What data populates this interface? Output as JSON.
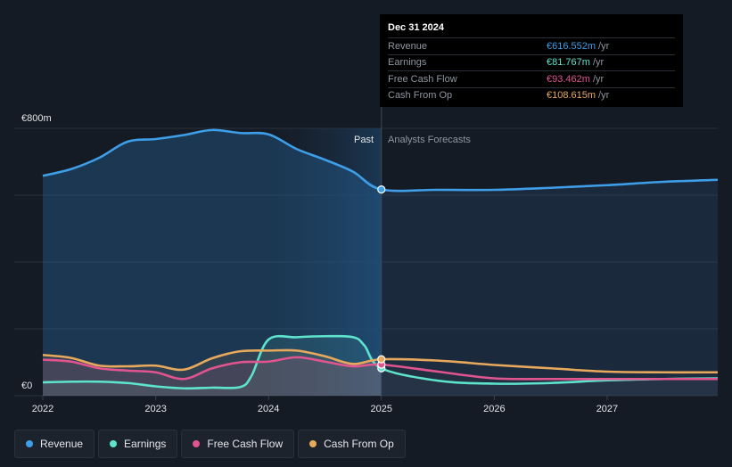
{
  "tooltip": {
    "date": "Dec 31 2024",
    "rows": [
      {
        "label": "Revenue",
        "value": "€616.552m",
        "unit": "/yr",
        "color": "#3e9ee8"
      },
      {
        "label": "Earnings",
        "value": "€81.767m",
        "unit": "/yr",
        "color": "#5ee3cc"
      },
      {
        "label": "Free Cash Flow",
        "value": "€93.462m",
        "unit": "/yr",
        "color": "#e0548f"
      },
      {
        "label": "Cash From Op",
        "value": "€108.615m",
        "unit": "/yr",
        "color": "#e8a95c"
      }
    ]
  },
  "legend": [
    {
      "label": "Revenue",
      "color": "#3e9ee8"
    },
    {
      "label": "Earnings",
      "color": "#5ee3cc"
    },
    {
      "label": "Free Cash Flow",
      "color": "#e0548f"
    },
    {
      "label": "Cash From Op",
      "color": "#e8a95c"
    }
  ],
  "chart_data": {
    "type": "line",
    "title": "",
    "xlabel": "",
    "ylabel": "",
    "ylim": [
      0,
      800
    ],
    "xlim": [
      2022.0,
      2027.98
    ],
    "y_tick_labels": [
      "€800m",
      "€0"
    ],
    "y_ticks": [
      800,
      0
    ],
    "x_ticks": [
      2022,
      2023,
      2024,
      2025,
      2026,
      2027
    ],
    "x_tick_labels": [
      "2022",
      "2023",
      "2024",
      "2025",
      "2026",
      "2027"
    ],
    "divider_x": 2025.0,
    "past_label": "Past",
    "forecast_label": "Analysts Forecasts",
    "highlight_x": 2025.0,
    "series": [
      {
        "name": "Revenue",
        "color": "#3e9ee8",
        "points": [
          [
            2022.0,
            658
          ],
          [
            2022.25,
            678
          ],
          [
            2022.5,
            712
          ],
          [
            2022.75,
            760
          ],
          [
            2023.0,
            768
          ],
          [
            2023.25,
            780
          ],
          [
            2023.5,
            795
          ],
          [
            2023.75,
            786
          ],
          [
            2024.0,
            782
          ],
          [
            2024.25,
            738
          ],
          [
            2024.5,
            706
          ],
          [
            2024.75,
            670
          ],
          [
            2025.0,
            617
          ],
          [
            2025.5,
            616
          ],
          [
            2026.0,
            616
          ],
          [
            2026.5,
            622
          ],
          [
            2027.0,
            630
          ],
          [
            2027.5,
            640
          ],
          [
            2027.98,
            646
          ]
        ]
      },
      {
        "name": "Earnings",
        "color": "#5ee3cc",
        "points": [
          [
            2022.0,
            40
          ],
          [
            2022.25,
            42
          ],
          [
            2022.5,
            42
          ],
          [
            2022.75,
            38
          ],
          [
            2023.0,
            28
          ],
          [
            2023.25,
            22
          ],
          [
            2023.5,
            24
          ],
          [
            2023.75,
            26
          ],
          [
            2023.85,
            60
          ],
          [
            2024.0,
            168
          ],
          [
            2024.25,
            175
          ],
          [
            2024.5,
            178
          ],
          [
            2024.75,
            175
          ],
          [
            2024.85,
            150
          ],
          [
            2025.0,
            82
          ],
          [
            2025.5,
            45
          ],
          [
            2026.0,
            36
          ],
          [
            2026.5,
            38
          ],
          [
            2027.0,
            46
          ],
          [
            2027.5,
            50
          ],
          [
            2027.98,
            52
          ]
        ]
      },
      {
        "name": "Free Cash Flow",
        "color": "#e0548f",
        "points": [
          [
            2022.0,
            108
          ],
          [
            2022.25,
            102
          ],
          [
            2022.5,
            82
          ],
          [
            2022.75,
            75
          ],
          [
            2023.0,
            70
          ],
          [
            2023.25,
            50
          ],
          [
            2023.5,
            82
          ],
          [
            2023.75,
            100
          ],
          [
            2024.0,
            102
          ],
          [
            2024.25,
            115
          ],
          [
            2024.5,
            102
          ],
          [
            2024.75,
            88
          ],
          [
            2025.0,
            93
          ],
          [
            2025.5,
            72
          ],
          [
            2026.0,
            52
          ],
          [
            2026.5,
            50
          ],
          [
            2027.0,
            50
          ],
          [
            2027.5,
            50
          ],
          [
            2027.98,
            50
          ]
        ]
      },
      {
        "name": "Cash From Op",
        "color": "#e8a95c",
        "points": [
          [
            2022.0,
            122
          ],
          [
            2022.25,
            113
          ],
          [
            2022.5,
            90
          ],
          [
            2022.75,
            88
          ],
          [
            2023.0,
            90
          ],
          [
            2023.25,
            78
          ],
          [
            2023.5,
            112
          ],
          [
            2023.75,
            133
          ],
          [
            2024.0,
            135
          ],
          [
            2024.25,
            135
          ],
          [
            2024.5,
            118
          ],
          [
            2024.75,
            95
          ],
          [
            2025.0,
            109
          ],
          [
            2025.5,
            105
          ],
          [
            2026.0,
            92
          ],
          [
            2026.5,
            82
          ],
          [
            2027.0,
            72
          ],
          [
            2027.5,
            70
          ],
          [
            2027.98,
            70
          ]
        ]
      }
    ]
  }
}
